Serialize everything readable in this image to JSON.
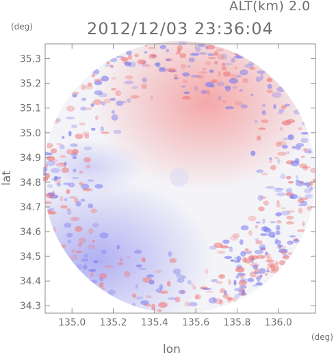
{
  "header": {
    "altitude_label": "ALT(km)  2.0",
    "timestamp": "2012/12/03 23:36:04"
  },
  "axes": {
    "y_unit": "(deg)",
    "x_unit": "(deg)",
    "y_title": "lat",
    "x_title": "lon"
  },
  "colors": {
    "positive": "#f08a8a",
    "negative": "#8a8af0",
    "neutral": "#f4f4f8",
    "frame": "#8a8a8a"
  },
  "chart_data": {
    "type": "heatmap",
    "title": "2012/12/03 23:36:04",
    "xlabel": "lon",
    "ylabel": "lat",
    "x_unit": "(deg)",
    "y_unit": "(deg)",
    "xlim": [
      134.87,
      136.18
    ],
    "ylim": [
      34.27,
      35.36
    ],
    "x_ticks": [
      "135.0",
      "135.2",
      "135.4",
      "135.6",
      "135.8",
      "136.0"
    ],
    "y_ticks": [
      "34.3",
      "34.4",
      "34.5",
      "34.6",
      "34.7",
      "34.8",
      "34.9",
      "35.0",
      "35.1",
      "35.2",
      "35.3"
    ],
    "circle_center": [
      135.52,
      34.82
    ],
    "circle_radius_deg": 0.66,
    "regions": [
      {
        "name": "northeast",
        "sign": "positive",
        "intensity": 0.5
      },
      {
        "name": "southwest",
        "sign": "negative",
        "intensity": 0.35
      },
      {
        "name": "center",
        "sign": "neutral",
        "intensity": 0.0
      }
    ],
    "grid": false,
    "legend": "none"
  }
}
